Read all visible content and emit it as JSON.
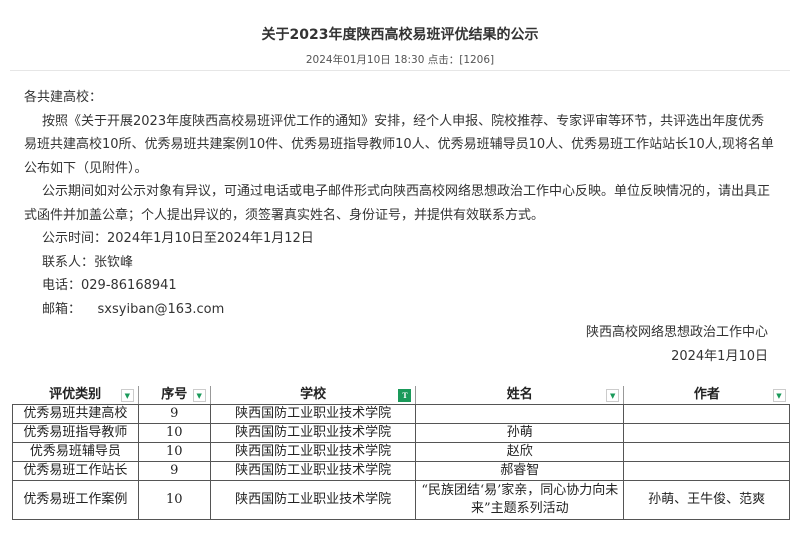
{
  "article": {
    "title": "关于2023年度陕西高校易班评优结果的公示",
    "meta": "2024年01月10日 18:30   点击：[1206]"
  },
  "body": {
    "greeting": "各共建高校：",
    "p1": "按照《关于开展2023年度陕西高校易班评优工作的通知》安排，经个人申报、院校推荐、专家评审等环节，共评选出年度优秀易班共建高校10所、优秀易班共建案例10件、优秀易班指导教师10人、优秀易班辅导员10人、优秀易班工作站站长10人,现将名单公布如下（见附件）。",
    "p2": "公示期间如对公示对象有异议，可通过电话或电子邮件形式向陕西高校网络思想政治工作中心反映。单位反映情况的，请出具正式函件并加盖公章；个人提出异议的，须签署真实姓名、身份证号，并提供有效联系方式。",
    "period": "公示时间：2024年1月10日至2024年1月12日",
    "contact": "联系人：张钦峰",
    "phone": "电话：029-86168941",
    "email": "邮箱：    sxsyiban@163.com",
    "org": "陕西高校网络思想政治工作中心",
    "date": "2024年1月10日"
  },
  "table": {
    "headers": [
      "评优类别",
      "序号",
      "学校",
      "姓名",
      "作者"
    ],
    "filter_active_column": "学校",
    "rows": [
      [
        "优秀易班共建高校",
        "9",
        "陕西国防工业职业技术学院",
        "",
        ""
      ],
      [
        "优秀易班指导教师",
        "10",
        "陕西国防工业职业技术学院",
        "孙萌",
        ""
      ],
      [
        "优秀易班辅导员",
        "10",
        "陕西国防工业职业技术学院",
        "赵欣",
        ""
      ],
      [
        "优秀易班工作站长",
        "9",
        "陕西国防工业职业技术学院",
        "郝睿智",
        ""
      ],
      [
        "优秀易班工作案例",
        "10",
        "陕西国防工业职业技术学院",
        "“民族团结‘易’家亲，同心协力向未来”主题系列活动",
        "孙萌、王牛俊、范爽"
      ]
    ]
  },
  "colors": {
    "filter_green": "#1a9a5a"
  }
}
